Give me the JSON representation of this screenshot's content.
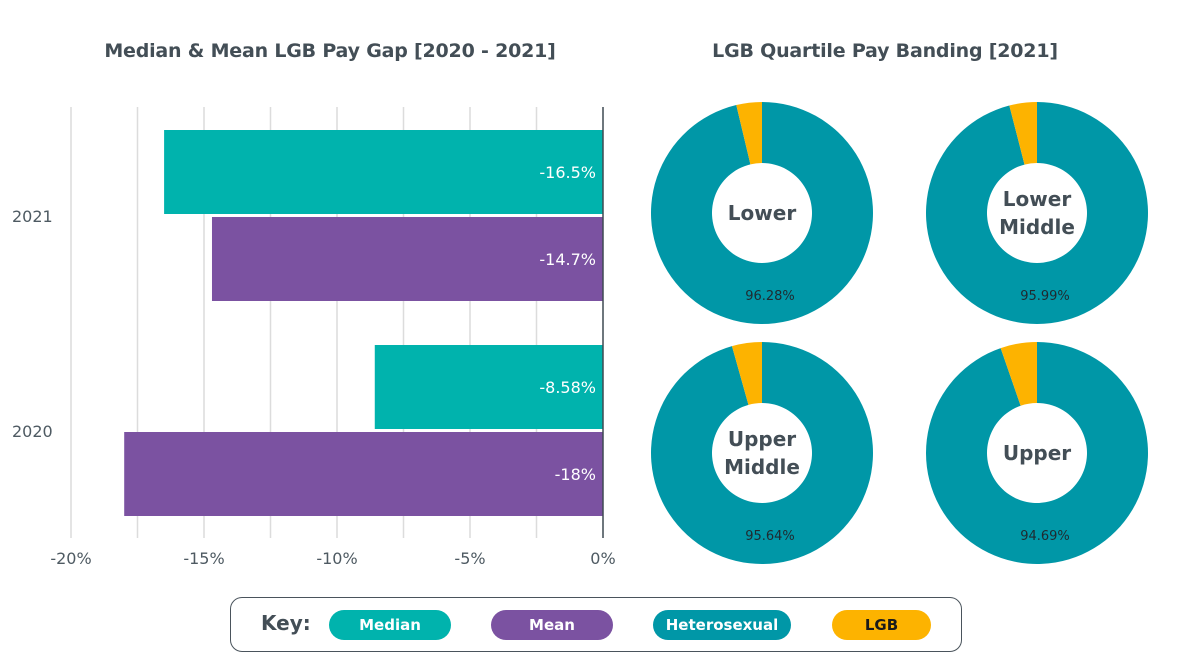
{
  "chart_data": [
    {
      "type": "bar",
      "orientation": "horizontal",
      "title": "Median & Mean LGB Pay Gap [2020 - 2021]",
      "categories": [
        "2021",
        "2020"
      ],
      "series": [
        {
          "name": "Median",
          "color": "#00b3ad",
          "values": [
            -16.5,
            -8.58
          ],
          "labels": [
            "-16.5%",
            "-8.58%"
          ]
        },
        {
          "name": "Mean",
          "color": "#7b52a1",
          "values": [
            -14.7,
            -18
          ],
          "labels": [
            "-14.7%",
            "-18%"
          ]
        }
      ],
      "xlim": [
        -20,
        0
      ],
      "xticks": [
        -20,
        -15,
        -10,
        -5,
        0
      ],
      "xtick_labels": [
        "-20%",
        "-15%",
        "-10%",
        "-5%",
        "0%"
      ],
      "grid_step": 2.5,
      "grid": true,
      "xlabel": "",
      "ylabel": ""
    },
    {
      "type": "pie",
      "variant": "donut",
      "title": "LGB Quartile Pay Banding [2021]",
      "colors": {
        "Heterosexual": "#0097a7",
        "LGB": "#fdb300"
      },
      "pies": [
        {
          "name": "Lower",
          "label_lines": [
            "Lower"
          ],
          "heterosexual": 96.28,
          "lgb": 3.72,
          "label": "96.28%"
        },
        {
          "name": "Lower Middle",
          "label_lines": [
            "Lower",
            "Middle"
          ],
          "heterosexual": 95.99,
          "lgb": 4.01,
          "label": "95.99%"
        },
        {
          "name": "Upper Middle",
          "label_lines": [
            "Upper",
            "Middle"
          ],
          "heterosexual": 95.64,
          "lgb": 4.36,
          "label": "95.64%"
        },
        {
          "name": "Upper",
          "label_lines": [
            "Upper"
          ],
          "heterosexual": 94.69,
          "lgb": 5.31,
          "label": "94.69%"
        }
      ]
    }
  ],
  "key": {
    "label": "Key:",
    "items": [
      {
        "name": "Median",
        "color": "#00b3ad",
        "text_color": "#ffffff"
      },
      {
        "name": "Mean",
        "color": "#7b52a1",
        "text_color": "#ffffff"
      },
      {
        "name": "Heterosexual",
        "color": "#0097a7",
        "text_color": "#ffffff"
      },
      {
        "name": "LGB",
        "color": "#fdb300",
        "text_color": "#1a1a1a"
      }
    ]
  }
}
